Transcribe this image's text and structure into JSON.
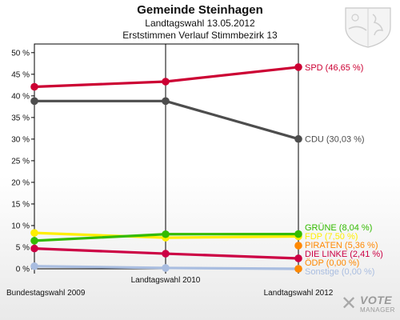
{
  "header": {
    "title": "Gemeinde Steinhagen",
    "subtitle1": "Landtagswahl 13.05.2012",
    "subtitle2": "Erststimmen Verlauf Stimmbezirk 13"
  },
  "logo": {
    "text1": "VOTE",
    "text2": "MANAGER",
    "icon": "vote-manager-x-mark"
  },
  "crest": {
    "icon": "coat-of-arms-icon"
  },
  "chart_data": {
    "type": "line",
    "title": "",
    "xlabel": "",
    "ylabel": "",
    "categories": [
      "Bundestagswahl 2009",
      "Landtagswahl 2010",
      "Landtagswahl 2012"
    ],
    "ylim": [
      0,
      52
    ],
    "yticks": [
      0,
      5,
      10,
      15,
      20,
      25,
      30,
      35,
      40,
      45,
      50
    ],
    "ytick_labels": [
      "0 %",
      "5 %",
      "10 %",
      "15 %",
      "20 %",
      "25 %",
      "30 %",
      "35 %",
      "40 %",
      "45 %",
      "50 %"
    ],
    "grid": false,
    "series": [
      {
        "name": "SPD",
        "color": "#cc0033",
        "values": [
          42.1,
          43.3,
          46.65
        ],
        "label": "SPD (46,65 %)"
      },
      {
        "name": "CDU",
        "color": "#4d4d4d",
        "values": [
          38.8,
          38.8,
          30.03
        ],
        "label": "CDU (30,03 %)"
      },
      {
        "name": "GRÜNE",
        "color": "#33bb00",
        "values": [
          6.5,
          8.0,
          8.04
        ],
        "label": "GRÜNE (8,04 %)"
      },
      {
        "name": "FDP",
        "color": "#ffee00",
        "values": [
          8.3,
          7.2,
          7.5
        ],
        "label": "FDP (7,50 %)"
      },
      {
        "name": "PIRATEN",
        "color": "#ff8800",
        "values": [
          null,
          null,
          5.36
        ],
        "label": "PIRATEN (5,36 %)"
      },
      {
        "name": "DIE LINKE",
        "color": "#cc0044",
        "values": [
          4.7,
          3.5,
          2.41
        ],
        "label": "DIE LINKE (2,41 %)"
      },
      {
        "name": "ÖDP",
        "color": "#ff8800",
        "values": [
          null,
          null,
          0.0
        ],
        "label": "ÖDP (0,00 %)"
      },
      {
        "name": "Sonstige",
        "color": "#a9bde0",
        "values": [
          0.6,
          0.2,
          0.0
        ],
        "label": "Sonstige (0,00 %)"
      }
    ]
  }
}
